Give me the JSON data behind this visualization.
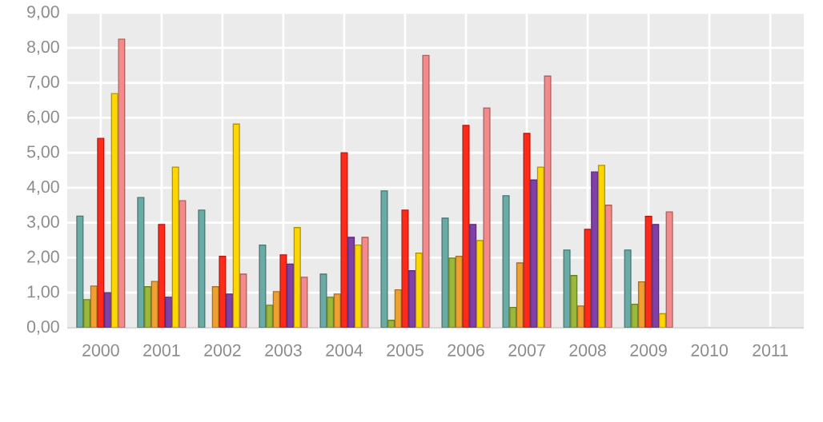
{
  "chart_data": {
    "type": "bar",
    "categories": [
      "2000",
      "2001",
      "2002",
      "2003",
      "2004",
      "2005",
      "2006",
      "2007",
      "2008",
      "2009",
      "2010",
      "2011"
    ],
    "series": [
      {
        "color": "#6aaba5",
        "values": [
          3.19,
          3.72,
          3.36,
          2.36,
          1.53,
          3.91,
          3.13,
          3.77,
          2.22,
          2.22,
          null,
          null
        ]
      },
      {
        "color": "#9ab83a",
        "values": [
          0.8,
          1.17,
          null,
          0.64,
          0.87,
          0.21,
          1.99,
          0.58,
          1.49,
          0.67,
          null,
          null
        ]
      },
      {
        "color": "#f0a030",
        "values": [
          1.19,
          1.32,
          1.17,
          1.03,
          0.96,
          1.08,
          2.04,
          1.85,
          0.62,
          1.31,
          null,
          null
        ]
      },
      {
        "color": "#ff2a1a",
        "values": [
          5.41,
          2.95,
          2.04,
          2.08,
          5.0,
          3.36,
          5.78,
          5.55,
          2.81,
          3.18,
          null,
          null
        ]
      },
      {
        "color": "#8040a8",
        "values": [
          1.0,
          0.87,
          0.96,
          1.82,
          2.58,
          1.63,
          2.95,
          4.22,
          4.45,
          2.95,
          null,
          null
        ]
      },
      {
        "color": "#ffd700",
        "values": [
          6.69,
          4.59,
          5.82,
          2.86,
          2.36,
          2.13,
          2.49,
          4.59,
          4.64,
          0.4,
          null,
          null
        ]
      },
      {
        "color": "#f58a8a",
        "values": [
          8.25,
          3.63,
          1.53,
          1.44,
          2.58,
          7.78,
          6.28,
          7.19,
          3.5,
          3.31,
          null,
          null
        ]
      }
    ],
    "ylim": [
      0,
      9
    ],
    "yticks": [
      {
        "value": 0,
        "label": "0,00"
      },
      {
        "value": 1,
        "label": "1,00"
      },
      {
        "value": 2,
        "label": "2,00"
      },
      {
        "value": 3,
        "label": "3,00"
      },
      {
        "value": 4,
        "label": "4,00"
      },
      {
        "value": 5,
        "label": "5,00"
      },
      {
        "value": 6,
        "label": "6,00"
      },
      {
        "value": 7,
        "label": "7,00"
      },
      {
        "value": 8,
        "label": "8,00"
      },
      {
        "value": 9,
        "label": "9,00"
      }
    ],
    "grid": true
  }
}
